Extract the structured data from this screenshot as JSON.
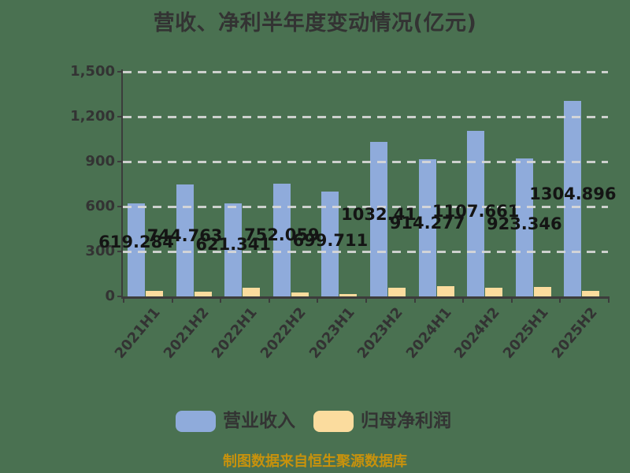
{
  "page": {
    "background_color": "#4A7151"
  },
  "chart": {
    "title": "营收、净利半年度变动情况(亿元)",
    "footer_note": "制图数据来自恒生聚源数据库",
    "colors": {
      "revenue_bar": "#8FABDB",
      "profit_bar": "#FBDC9E",
      "gridline": "#D8D8D8",
      "axis": "#3C3C3C",
      "tick_text": "#333333",
      "data_label_text": "#141414",
      "footer_text": "#C8920C"
    }
  },
  "chart_data": {
    "type": "bar",
    "title": "营收、净利半年度变动情况(亿元)",
    "categories": [
      "2021H1",
      "2021H2",
      "2022H1",
      "2022H2",
      "2023H1",
      "2023H2",
      "2024H1",
      "2024H2",
      "2025H1",
      "2025H2"
    ],
    "series": [
      {
        "name": "营业收入",
        "color": "#8FABDB",
        "values": [
          619.284,
          744.763,
          621.341,
          752.059,
          699.711,
          1032.41,
          914.277,
          1107.661,
          923.346,
          1304.896
        ],
        "data_labels": [
          "619.284",
          "744.763",
          "621.341",
          "752.059",
          "699.711",
          "1032.41",
          "914.277",
          "1107.661",
          "923.346",
          "1304.896"
        ]
      },
      {
        "name": "归母净利润",
        "color": "#FBDC9E",
        "values": [
          35,
          32,
          56,
          27,
          14,
          57,
          71,
          56,
          63,
          38
        ],
        "values_note": "bars unlabeled in image; values estimated from bar heights",
        "data_labels": []
      }
    ],
    "xlabel": "",
    "ylabel": "",
    "ylim": [
      0,
      1500
    ],
    "yticks": {
      "values": [
        0,
        300,
        600,
        900,
        1200,
        1500
      ],
      "labels": [
        "0",
        "300",
        "600",
        "900",
        "1,200",
        "1,500"
      ]
    },
    "grid": "horizontal dashed lines drawn above bars",
    "legend_position": "bottom center",
    "source_note": "制图数据来自恒生聚源数据库"
  },
  "legend": {
    "items": [
      {
        "label": "营业收入",
        "color": "#8FABDB"
      },
      {
        "label": "归母净利润",
        "color": "#FBDC9E"
      }
    ]
  }
}
